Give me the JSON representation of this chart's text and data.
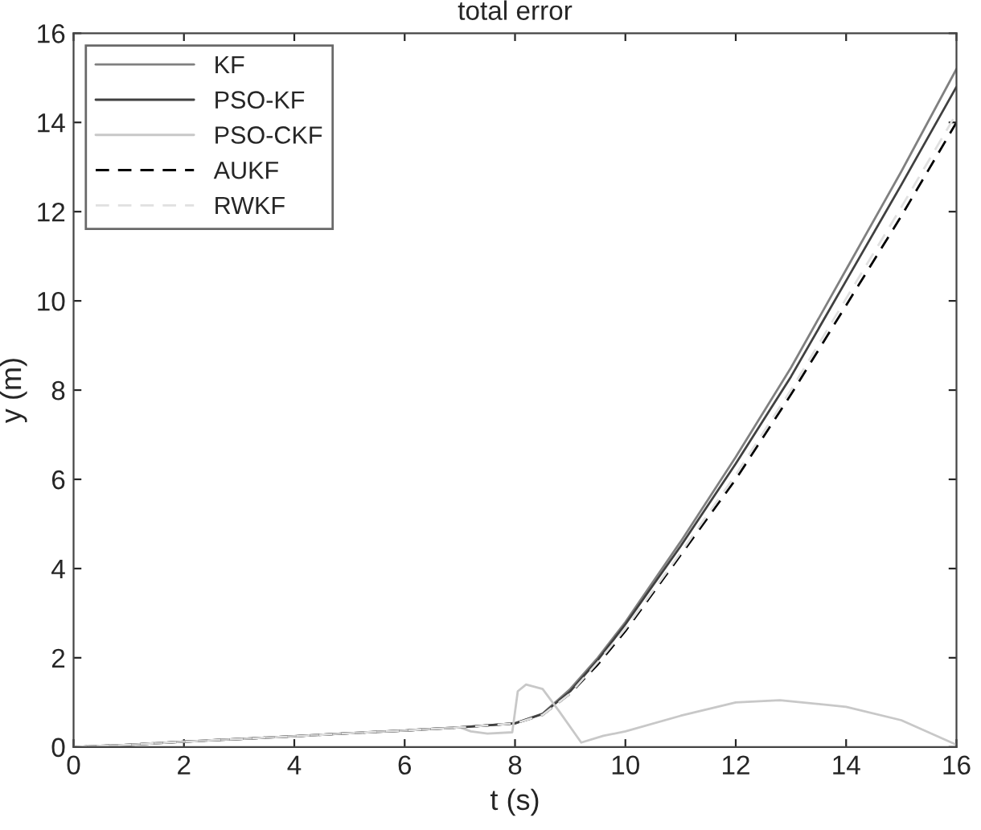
{
  "chart_data": {
    "type": "line",
    "title": "total error",
    "xlabel": "t (s)",
    "ylabel": "y (m)",
    "x": [
      0,
      1,
      2,
      3,
      4,
      5,
      6,
      7,
      8,
      8.5,
      9,
      9.5,
      10,
      11,
      12,
      13,
      14,
      15,
      16
    ],
    "series": [
      {
        "name": "KF",
        "color": "#808080",
        "line_style": "solid",
        "values": [
          0,
          0.05,
          0.12,
          0.18,
          0.24,
          0.31,
          0.37,
          0.44,
          0.53,
          0.75,
          1.3,
          2.0,
          2.8,
          4.6,
          6.5,
          8.5,
          10.7,
          12.9,
          15.2
        ]
      },
      {
        "name": "PSO-KF",
        "color": "#404040",
        "line_style": "solid",
        "values": [
          0,
          0.05,
          0.12,
          0.18,
          0.24,
          0.31,
          0.37,
          0.44,
          0.53,
          0.74,
          1.25,
          1.95,
          2.75,
          4.5,
          6.35,
          8.3,
          10.45,
          12.6,
          14.8
        ]
      },
      {
        "name": "PSO-CKF",
        "color": "#c8c8c8",
        "line_style": "solid",
        "x": [
          0,
          1,
          2,
          3,
          4,
          5,
          6,
          7,
          7.2,
          7.5,
          7.95,
          8.05,
          8.2,
          8.5,
          8.8,
          9.2,
          9.6,
          10,
          11,
          12,
          12.8,
          14,
          15,
          16
        ],
        "values": [
          0,
          0.05,
          0.12,
          0.18,
          0.24,
          0.31,
          0.37,
          0.44,
          0.35,
          0.3,
          0.33,
          1.25,
          1.4,
          1.3,
          0.8,
          0.1,
          0.25,
          0.35,
          0.7,
          1.0,
          1.05,
          0.9,
          0.6,
          0.05
        ]
      },
      {
        "name": "AUKF",
        "color": "#000000",
        "line_style": "dashed",
        "values": [
          0,
          0.05,
          0.12,
          0.18,
          0.24,
          0.31,
          0.37,
          0.44,
          0.53,
          0.72,
          1.2,
          1.85,
          2.6,
          4.3,
          6.0,
          7.9,
          9.9,
          11.9,
          14.0
        ]
      },
      {
        "name": "RWKF",
        "color": "#e0e0e0",
        "line_style": "dashed",
        "values": [
          0,
          0.05,
          0.12,
          0.18,
          0.24,
          0.31,
          0.37,
          0.44,
          0.53,
          0.72,
          1.2,
          1.9,
          2.65,
          4.35,
          6.1,
          8.0,
          10.05,
          12.1,
          14.2
        ]
      }
    ],
    "xlim": [
      0,
      16
    ],
    "ylim": [
      0,
      16
    ],
    "xticks": [
      0,
      2,
      4,
      6,
      8,
      10,
      12,
      14,
      16
    ],
    "yticks": [
      0,
      2,
      4,
      6,
      8,
      10,
      12,
      14,
      16
    ],
    "legend": "top left",
    "grid": false
  }
}
